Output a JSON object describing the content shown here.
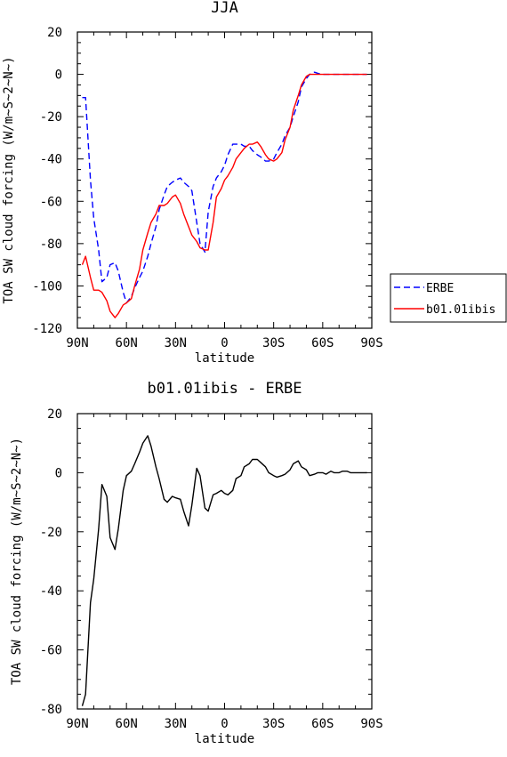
{
  "chart_data": [
    {
      "type": "line",
      "title": "JJA",
      "xlabel": "latitude",
      "ylabel": "TOA SW cloud forcing (W/m~S~2~N~)",
      "x_tick_labels": [
        "90N",
        "60N",
        "30N",
        "0",
        "30S",
        "60S",
        "90S"
      ],
      "x_ticks": [
        90,
        60,
        30,
        0,
        -30,
        -60,
        -90
      ],
      "xlim": [
        90,
        -90
      ],
      "ylim": [
        -120,
        20
      ],
      "y_ticks": [
        20,
        0,
        -20,
        -40,
        -60,
        -80,
        -100,
        -120
      ],
      "legend_position": "right",
      "series": [
        {
          "name": "ERBE",
          "color": "#0000ff",
          "dash": true,
          "x": [
            87,
            85,
            82,
            80,
            77,
            75,
            72,
            70,
            67,
            65,
            62,
            60,
            57,
            55,
            52,
            50,
            47,
            45,
            42,
            40,
            37,
            35,
            32,
            30,
            27,
            25,
            22,
            20,
            17,
            15,
            12,
            10,
            7,
            5,
            2,
            0,
            -2,
            -5,
            -7,
            -10,
            -12,
            -15,
            -17,
            -20,
            -22,
            -25,
            -27,
            -30,
            -32,
            -35,
            -37,
            -40,
            -42,
            -45,
            -47,
            -50,
            -52,
            -55,
            -57,
            -60,
            -62,
            -65,
            -67,
            -70,
            -72,
            -75,
            -77,
            -80,
            -82,
            -85,
            -87
          ],
          "values": [
            -11,
            -11,
            -50,
            -68,
            -83,
            -98,
            -96,
            -90,
            -89,
            -93,
            -103,
            -108,
            -105,
            -101,
            -96,
            -93,
            -86,
            -80,
            -72,
            -64,
            -57,
            -53,
            -51,
            -50,
            -49,
            -51,
            -53,
            -55,
            -70,
            -80,
            -84,
            -65,
            -53,
            -49,
            -46,
            -43,
            -38,
            -33,
            -33,
            -33,
            -34,
            -34,
            -36,
            -38,
            -39,
            -41,
            -41,
            -40,
            -37,
            -33,
            -29,
            -25,
            -20,
            -13,
            -6,
            -2,
            0,
            1,
            0.5,
            0,
            0,
            0,
            0,
            0,
            0,
            0,
            0,
            0,
            0,
            0,
            0
          ]
        },
        {
          "name": "b01.01ibis",
          "color": "#ff0000",
          "dash": false,
          "x": [
            87,
            85,
            82,
            80,
            77,
            75,
            72,
            70,
            67,
            65,
            62,
            60,
            57,
            55,
            52,
            50,
            47,
            45,
            42,
            40,
            37,
            35,
            32,
            30,
            27,
            25,
            22,
            20,
            17,
            15,
            12,
            10,
            7,
            5,
            2,
            0,
            -2,
            -5,
            -7,
            -10,
            -12,
            -15,
            -17,
            -20,
            -22,
            -25,
            -27,
            -30,
            -32,
            -35,
            -37,
            -40,
            -42,
            -45,
            -47,
            -50,
            -52,
            -55,
            -57,
            -60,
            -62,
            -65,
            -67,
            -70,
            -72,
            -75,
            -77,
            -80,
            -82,
            -85,
            -87
          ],
          "values": [
            -90,
            -86,
            -96,
            -102,
            -102,
            -103,
            -107,
            -112,
            -115,
            -113,
            -109,
            -108,
            -106,
            -100,
            -92,
            -83,
            -75,
            -70,
            -66,
            -62,
            -62,
            -61,
            -58,
            -57,
            -61,
            -66,
            -72,
            -76,
            -79,
            -82,
            -83,
            -83,
            -70,
            -58,
            -54,
            -50,
            -48,
            -44,
            -40,
            -37,
            -35,
            -33,
            -33,
            -32,
            -34,
            -38,
            -40,
            -41,
            -40,
            -37,
            -31,
            -25,
            -17,
            -10,
            -5,
            -1,
            0,
            0,
            0,
            0,
            0,
            0,
            0,
            0,
            0,
            0,
            0,
            0,
            0,
            0,
            0
          ]
        }
      ]
    },
    {
      "type": "line",
      "title": "b01.01ibis - ERBE",
      "xlabel": "latitude",
      "ylabel": "TOA SW cloud forcing (W/m~S~2~N~)",
      "x_tick_labels": [
        "90N",
        "60N",
        "30N",
        "0",
        "30S",
        "60S",
        "90S"
      ],
      "x_ticks": [
        90,
        60,
        30,
        0,
        -30,
        -60,
        -90
      ],
      "xlim": [
        90,
        -90
      ],
      "ylim": [
        -80,
        20
      ],
      "y_ticks": [
        20,
        0,
        -20,
        -40,
        -60,
        -80
      ],
      "series": [
        {
          "color": "#000000",
          "dash": false,
          "x": [
            87,
            85,
            82,
            80,
            77,
            75,
            72,
            70,
            67,
            65,
            62,
            60,
            57,
            55,
            52,
            50,
            47,
            45,
            42,
            40,
            37,
            35,
            32,
            30,
            27,
            25,
            22,
            20,
            17,
            15,
            12,
            10,
            7,
            5,
            2,
            0,
            -2,
            -5,
            -7,
            -10,
            -12,
            -15,
            -17,
            -20,
            -22,
            -25,
            -27,
            -30,
            -32,
            -35,
            -37,
            -40,
            -42,
            -45,
            -47,
            -50,
            -52,
            -55,
            -57,
            -60,
            -62,
            -65,
            -67,
            -70,
            -72,
            -75,
            -77,
            -80,
            -82,
            -85,
            -87
          ],
          "values": [
            -79,
            -75,
            -44,
            -36,
            -19,
            -4,
            -8,
            -22,
            -26,
            -19,
            -6,
            -1,
            0.5,
            3,
            7,
            10,
            12.5,
            9,
            2,
            -2,
            -9,
            -10,
            -8,
            -8.5,
            -9,
            -13,
            -18,
            -11,
            1.5,
            -1,
            -12,
            -13,
            -7.5,
            -7,
            -6,
            -7,
            -7.5,
            -6,
            -2,
            -1,
            2,
            3,
            4.5,
            4.5,
            3.5,
            2,
            0,
            -1,
            -1.5,
            -1,
            -0.5,
            1,
            3,
            4,
            2,
            1,
            -1,
            -0.5,
            0,
            0,
            -0.5,
            0.5,
            0,
            0,
            0.5,
            0.5,
            0,
            0,
            0,
            0,
            0
          ]
        }
      ]
    }
  ]
}
